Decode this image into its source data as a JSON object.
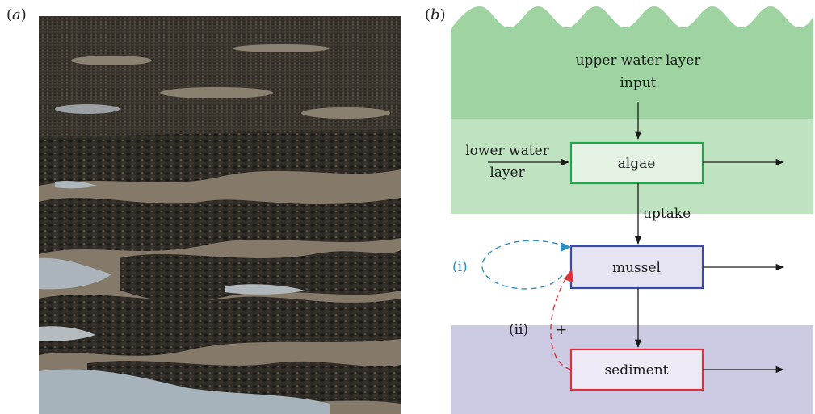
{
  "panels": {
    "a_label": "a",
    "b_label": "b"
  },
  "photo": {
    "subject": "mussel bed at low tide"
  },
  "diagram": {
    "upper_line1": "upper water layer",
    "upper_line2": "input",
    "lower_line1": "lower water",
    "lower_line2": "layer",
    "algae": "algae",
    "uptake": "uptake",
    "mussel": "mussel",
    "sediment": "sediment",
    "label_i": "(i)",
    "label_ii": "(ii)",
    "plus": "+"
  },
  "colors": {
    "upper_water": "#9fd3a2",
    "lower_water": "#bfe3c1",
    "sediment_layer": "#ccc9e2",
    "algae_box_border": "#1fa64a",
    "algae_box_fill": "#e4f3e4",
    "mussel_box_border": "#3a4ba8",
    "mussel_box_fill": "#e6e4f3",
    "sediment_box_border": "#e0303a",
    "sediment_box_fill": "#eeebf6",
    "loop_i": "#2f8fc2",
    "loop_ii": "#e0303a"
  }
}
